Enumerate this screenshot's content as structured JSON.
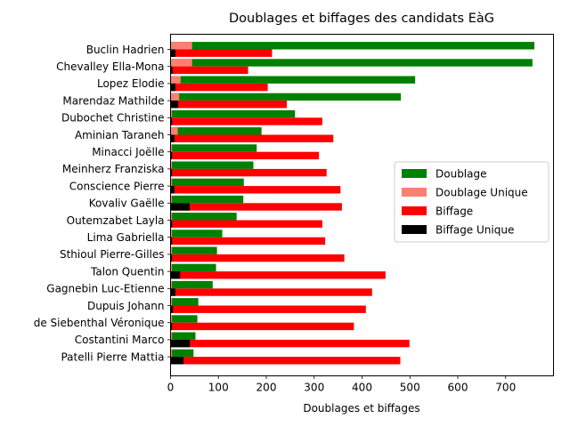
{
  "chart_data": {
    "type": "bar",
    "orientation": "horizontal",
    "title": "Doublages et biffages des candidats EàG",
    "xlabel": "Doublages et biffages",
    "ylabel": "",
    "xlim": [
      0,
      800
    ],
    "xticks": [
      0,
      100,
      200,
      300,
      400,
      500,
      600,
      700
    ],
    "grid": false,
    "legend_position": "center-right",
    "categories": [
      "Buclin Hadrien",
      "Chevalley Ella-Mona",
      "Lopez Elodie",
      "Marendaz Mathilde",
      "Dubochet Christine",
      "Aminian Taraneh",
      "Minacci Joëlle",
      "Meinherz Franziska",
      "Conscience Pierre",
      "Kovaliv Gaëlle",
      "Outemzabet Layla",
      "Lima Gabriella",
      "Sthioul Pierre-Gilles",
      "Talon Quentin",
      "Gagnebin Luc-Etienne",
      "Dupuis Johann",
      "de Siebenthal Véronique",
      "Costantini Marco",
      "Patelli Pierre Mattia"
    ],
    "series": [
      {
        "name": "Doublage",
        "color": "#008000",
        "values": [
          760,
          756,
          511,
          481,
          260,
          190,
          180,
          173,
          153,
          152,
          138,
          108,
          97,
          95,
          88,
          58,
          56,
          52,
          48
        ]
      },
      {
        "name": "Doublage Unique",
        "color": "#fa8072",
        "values": [
          45,
          45,
          21,
          18,
          3,
          15,
          3,
          3,
          3,
          3,
          3,
          3,
          3,
          3,
          3,
          3,
          3,
          3,
          3
        ]
      },
      {
        "name": "Biffage",
        "color": "#ff0000",
        "values": [
          212,
          162,
          203,
          243,
          317,
          340,
          310,
          326,
          355,
          358,
          317,
          323,
          363,
          449,
          421,
          408,
          383,
          499,
          480
        ]
      },
      {
        "name": "Biffage Unique",
        "color": "#000000",
        "values": [
          10,
          4,
          10,
          16,
          3,
          8,
          3,
          3,
          8,
          40,
          3,
          3,
          3,
          20,
          10,
          5,
          3,
          40,
          27
        ]
      }
    ]
  }
}
